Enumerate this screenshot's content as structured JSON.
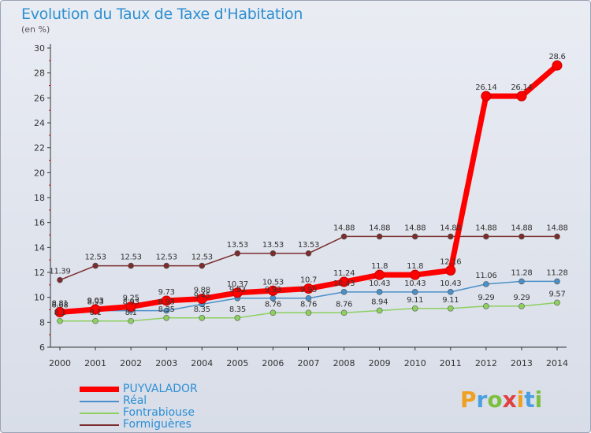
{
  "header": {
    "title": "Evolution du Taux de Taxe d'Habitation",
    "subtitle": "(en %)"
  },
  "chart_data": {
    "type": "line",
    "title": "Evolution du Taux de Taxe d'Habitation",
    "ylabel": "(en %)",
    "xlabel": "",
    "ylim": [
      6,
      30
    ],
    "yticks": [
      6,
      8,
      10,
      12,
      14,
      16,
      18,
      20,
      22,
      24,
      26,
      28,
      30
    ],
    "grid": false,
    "legend_position": "bottom-left",
    "categories": [
      "2000",
      "2001",
      "2002",
      "2003",
      "2004",
      "2005",
      "2006",
      "2007",
      "2008",
      "2009",
      "2010",
      "2011",
      "2012",
      "2013",
      "2014"
    ],
    "series": [
      {
        "name": "PUYVALADOR",
        "color": "#ff0000",
        "values": [
          8.81,
          9.03,
          9.25,
          9.73,
          9.88,
          10.37,
          10.53,
          10.7,
          11.24,
          11.8,
          11.8,
          12.16,
          26.14,
          26.14,
          28.6
        ],
        "labels": [
          "8.81",
          "9.03",
          "9.25",
          "9.73",
          "9.88",
          "10.37",
          "10.53",
          "10.7",
          "11.24",
          "11.8",
          "11.8",
          "12.16",
          "26.14",
          "26.14",
          "28.6"
        ]
      },
      {
        "name": "Réal",
        "color": "#4a90c8",
        "values": [
          8.68,
          8.93,
          8.93,
          8.93,
          9.45,
          9.93,
          9.93,
          9.93,
          10.43,
          10.43,
          10.43,
          10.43,
          11.06,
          11.28,
          11.28
        ],
        "labels": [
          "8.68",
          "8.93",
          "8.93",
          "8.93",
          "9.45",
          "9.93",
          "9.93",
          "9.93",
          "10.43",
          "10.43",
          "10.43",
          "10.43",
          "11.06",
          "11.28",
          "11.28"
        ]
      },
      {
        "name": "Fontrabiouse",
        "color": "#8ed060",
        "values": [
          8.1,
          8.1,
          8.1,
          8.35,
          8.35,
          8.35,
          8.76,
          8.76,
          8.76,
          8.94,
          9.11,
          9.11,
          9.29,
          9.29,
          9.57
        ],
        "labels": [
          "8.1",
          "8.1",
          "8.1",
          "8.35",
          "8.35",
          "8.35",
          "8.76",
          "8.76",
          "8.76",
          "8.94",
          "9.11",
          "9.11",
          "9.29",
          "9.29",
          "9.57"
        ]
      },
      {
        "name": "Formiguères",
        "color": "#7b2d2d",
        "values": [
          11.39,
          12.53,
          12.53,
          12.53,
          12.53,
          13.53,
          13.53,
          13.53,
          14.88,
          14.88,
          14.88,
          14.88,
          14.88,
          14.88,
          14.88
        ],
        "labels": [
          "11.39",
          "12.53",
          "12.53",
          "12.53",
          "12.53",
          "13.53",
          "13.53",
          "13.53",
          "14.88",
          "14.88",
          "14.88",
          "14.88",
          "14.88",
          "14.88",
          "14.88"
        ]
      }
    ]
  },
  "legend": {
    "items": [
      {
        "label": "PUYVALADOR",
        "color": "#ff0000"
      },
      {
        "label": "Réal",
        "color": "#4a90c8"
      },
      {
        "label": "Fontrabiouse",
        "color": "#8ed060"
      },
      {
        "label": "Formiguères",
        "color": "#7b2d2d"
      }
    ]
  },
  "logo": {
    "letters": [
      "P",
      "r",
      "o",
      "x",
      "i",
      "t",
      "i"
    ],
    "colors": [
      "#f0a020",
      "#4aa0e0",
      "#7cc040",
      "#e04040",
      "#f0a020",
      "#4aa0e0",
      "#7cc040"
    ]
  }
}
